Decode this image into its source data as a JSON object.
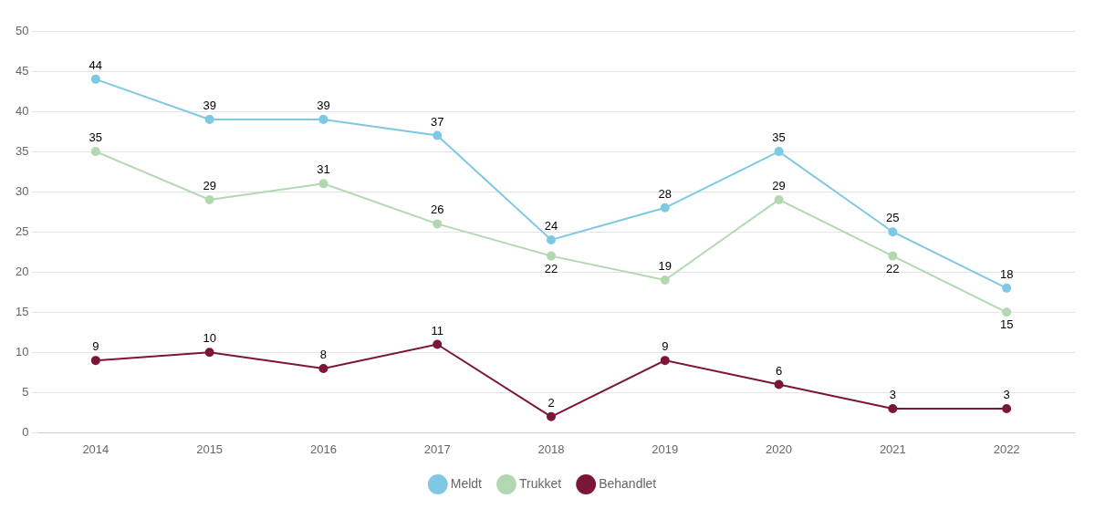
{
  "chart_data": {
    "type": "line",
    "x": [
      2014,
      2015,
      2016,
      2017,
      2018,
      2019,
      2020,
      2021,
      2022
    ],
    "series": [
      {
        "name": "Meldt",
        "color": "#7ec8e3",
        "values": [
          44,
          39,
          39,
          37,
          24,
          28,
          35,
          25,
          18
        ]
      },
      {
        "name": "Trukket",
        "color": "#b2d8b2",
        "values": [
          35,
          29,
          31,
          26,
          22,
          19,
          29,
          22,
          15
        ]
      },
      {
        "name": "Behandlet",
        "color": "#7b1734",
        "values": [
          9,
          10,
          8,
          11,
          2,
          9,
          6,
          3,
          3
        ]
      }
    ],
    "xlim": [
      2013.5,
      2022.6
    ],
    "xticks": [
      2014,
      2015,
      2016,
      2017,
      2018,
      2019,
      2020,
      2021,
      2022
    ],
    "ylim": [
      0,
      50
    ],
    "yticks": [
      0,
      5,
      10,
      15,
      20,
      25,
      30,
      35,
      40,
      45,
      50
    ],
    "grid": "y",
    "legend": "bottom",
    "data_labels": true,
    "marker": "circle"
  }
}
